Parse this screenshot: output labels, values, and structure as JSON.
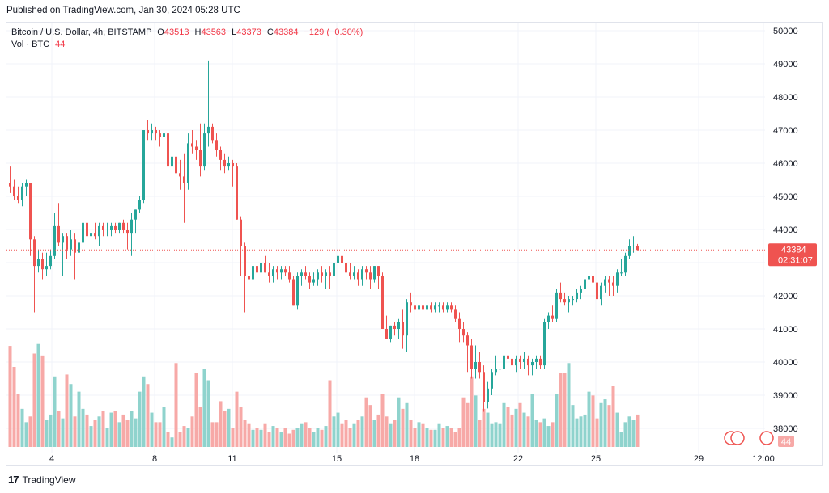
{
  "header": {
    "published_text": "Published on TradingView.com, Jan 30, 2024 05:28 UTC"
  },
  "legend": {
    "symbol": "Bitcoin / U.S. Dollar, 4h, BITSTAMP",
    "open_key": "O",
    "open_value": "43513",
    "high_key": "H",
    "high_value": "43563",
    "low_key": "L",
    "low_value": "43373",
    "close_key": "C",
    "close_value": "43384",
    "change": "−129 (−0.30%)",
    "vol_label": "Vol · BTC",
    "vol_value": "44"
  },
  "price_axis": {
    "ticks": [
      "50000",
      "49000",
      "48000",
      "47000",
      "46000",
      "45000",
      "44000",
      "43000",
      "42000",
      "41000",
      "40000",
      "39000",
      "38000"
    ],
    "last_price_label": "43384",
    "countdown_label": "02:31:07",
    "volume_badge": "44"
  },
  "time_axis": {
    "ticks": [
      "4",
      "8",
      "11",
      "15",
      "18",
      "22",
      "25",
      "29",
      "12:00"
    ]
  },
  "footer": {
    "brand": "TradingView"
  },
  "colors": {
    "up": "#26a69a",
    "down": "#ef5350",
    "vol_up": "#8fd3cd",
    "vol_down": "#f7a9a7",
    "grid": "#f0f3fa",
    "last_price_line": "#ef5350"
  },
  "chart_data": {
    "type": "candlestick",
    "title": "Bitcoin / U.S. Dollar, 4h, BITSTAMP",
    "ylim": [
      37800,
      50200
    ],
    "y_ticks": [
      50000,
      49000,
      48000,
      47000,
      46000,
      45000,
      44000,
      43000,
      42000,
      41000,
      40000,
      39000,
      38000
    ],
    "x_ticks": [
      "4",
      "8",
      "11",
      "15",
      "18",
      "22",
      "25",
      "29",
      "12:00"
    ],
    "last_close": 43384,
    "candles": [
      [
        45400,
        45900,
        45100,
        45300
      ],
      [
        45300,
        45500,
        44900,
        45000
      ],
      [
        45000,
        45300,
        44800,
        44900
      ],
      [
        44900,
        45400,
        44700,
        45300
      ],
      [
        45300,
        45500,
        45000,
        45400
      ],
      [
        45400,
        45400,
        43200,
        43700
      ],
      [
        43700,
        43800,
        41500,
        42900
      ],
      [
        42900,
        43400,
        42700,
        43100
      ],
      [
        43100,
        43300,
        42500,
        42800
      ],
      [
        42800,
        43300,
        42600,
        42900
      ],
      [
        42900,
        43400,
        42800,
        43200
      ],
      [
        43200,
        44500,
        43100,
        44100
      ],
      [
        44100,
        44800,
        43500,
        43600
      ],
      [
        43600,
        43900,
        42600,
        43800
      ],
      [
        43800,
        43900,
        43100,
        43400
      ],
      [
        43400,
        44000,
        43200,
        43700
      ],
      [
        43700,
        43900,
        42500,
        43300
      ],
      [
        43300,
        43700,
        43000,
        43600
      ],
      [
        43600,
        44300,
        43300,
        44200
      ],
      [
        44200,
        44500,
        43700,
        43800
      ],
      [
        43800,
        44100,
        43600,
        43900
      ],
      [
        43900,
        44200,
        43700,
        43800
      ],
      [
        43800,
        44200,
        43500,
        44100
      ],
      [
        44100,
        44200,
        43800,
        44000
      ],
      [
        44000,
        44200,
        43800,
        44000
      ],
      [
        44000,
        44200,
        43800,
        44100
      ],
      [
        44100,
        44200,
        43900,
        44000
      ],
      [
        44000,
        44200,
        43900,
        44200
      ],
      [
        44200,
        44300,
        43900,
        44000
      ],
      [
        44000,
        44200,
        43400,
        43900
      ],
      [
        43900,
        44500,
        43200,
        44300
      ],
      [
        44300,
        44600,
        43900,
        44600
      ],
      [
        44600,
        45000,
        44500,
        44900
      ],
      [
        44900,
        47000,
        44800,
        47000
      ],
      [
        47000,
        47300,
        46700,
        46900
      ],
      [
        46900,
        47200,
        46700,
        47000
      ],
      [
        47000,
        47100,
        46700,
        46900
      ],
      [
        46900,
        47000,
        46500,
        46800
      ],
      [
        46800,
        47000,
        46600,
        46900
      ],
      [
        46900,
        47900,
        45700,
        45900
      ],
      [
        45900,
        46300,
        44600,
        46200
      ],
      [
        46200,
        46300,
        45600,
        45700
      ],
      [
        45700,
        46100,
        45200,
        45600
      ],
      [
        45600,
        46300,
        44200,
        45400
      ],
      [
        45400,
        46900,
        45200,
        46600
      ],
      [
        46600,
        47000,
        46300,
        46500
      ],
      [
        46500,
        46700,
        46100,
        46400
      ],
      [
        46400,
        47200,
        45600,
        45900
      ],
      [
        45900,
        47200,
        45800,
        46900
      ],
      [
        46900,
        49100,
        46500,
        47100
      ],
      [
        47100,
        47200,
        46600,
        46700
      ],
      [
        46700,
        46900,
        46200,
        46400
      ],
      [
        46400,
        46500,
        45800,
        46100
      ],
      [
        46100,
        46300,
        45700,
        45900
      ],
      [
        45900,
        46200,
        45800,
        46000
      ],
      [
        46000,
        46100,
        45300,
        45900
      ],
      [
        45900,
        46000,
        44300,
        44300
      ],
      [
        44300,
        44400,
        42600,
        43500
      ],
      [
        43500,
        43600,
        41500,
        42600
      ],
      [
        42600,
        43000,
        42300,
        42500
      ],
      [
        42500,
        43100,
        42400,
        42900
      ],
      [
        42900,
        43200,
        42500,
        42700
      ],
      [
        42700,
        43100,
        42500,
        43000
      ],
      [
        43000,
        43200,
        42700,
        42700
      ],
      [
        42700,
        43000,
        42400,
        42600
      ],
      [
        42600,
        42900,
        42400,
        42800
      ],
      [
        42800,
        42900,
        42500,
        42700
      ],
      [
        42700,
        42900,
        42500,
        42800
      ],
      [
        42800,
        42900,
        42600,
        42700
      ],
      [
        42700,
        42900,
        42400,
        42500
      ],
      [
        42500,
        42600,
        41700,
        41700
      ],
      [
        41700,
        42700,
        41600,
        42600
      ],
      [
        42600,
        42800,
        42300,
        42700
      ],
      [
        42700,
        42900,
        42500,
        42600
      ],
      [
        42600,
        42700,
        42200,
        42400
      ],
      [
        42400,
        42700,
        42300,
        42500
      ],
      [
        42500,
        42800,
        42300,
        42700
      ],
      [
        42700,
        42900,
        42400,
        42600
      ],
      [
        42600,
        42800,
        42200,
        42700
      ],
      [
        42700,
        42900,
        42200,
        42600
      ],
      [
        42600,
        43300,
        42500,
        43000
      ],
      [
        43000,
        43600,
        42900,
        43200
      ],
      [
        43200,
        43300,
        42900,
        43000
      ],
      [
        43000,
        43100,
        42600,
        42700
      ],
      [
        42700,
        43000,
        42500,
        42600
      ],
      [
        42600,
        42900,
        42500,
        42700
      ],
      [
        42700,
        42800,
        42300,
        42500
      ],
      [
        42500,
        42900,
        42300,
        42800
      ],
      [
        42800,
        42900,
        42500,
        42700
      ],
      [
        42700,
        42900,
        42200,
        42500
      ],
      [
        42500,
        42900,
        42400,
        42900
      ],
      [
        42900,
        42900,
        42200,
        42600
      ],
      [
        42600,
        42700,
        41000,
        41000
      ],
      [
        41000,
        41400,
        40700,
        40700
      ],
      [
        40700,
        41100,
        40600,
        41100
      ],
      [
        41100,
        41200,
        40800,
        41000
      ],
      [
        41000,
        41300,
        40700,
        41200
      ],
      [
        41200,
        41600,
        40400,
        40800
      ],
      [
        40800,
        41900,
        40300,
        41800
      ],
      [
        41800,
        42100,
        41500,
        41700
      ],
      [
        41700,
        41800,
        41500,
        41600
      ],
      [
        41600,
        41800,
        41500,
        41700
      ],
      [
        41700,
        41800,
        41500,
        41600
      ],
      [
        41600,
        41800,
        41500,
        41700
      ],
      [
        41700,
        41800,
        41500,
        41600
      ],
      [
        41600,
        41800,
        41500,
        41700
      ],
      [
        41700,
        41800,
        41500,
        41700
      ],
      [
        41700,
        41800,
        41500,
        41600
      ],
      [
        41600,
        41800,
        41500,
        41700
      ],
      [
        41700,
        41800,
        41500,
        41600
      ],
      [
        41600,
        41700,
        41200,
        41300
      ],
      [
        41300,
        41500,
        40600,
        41000
      ],
      [
        41000,
        41200,
        40600,
        40800
      ],
      [
        40800,
        40900,
        39700,
        40500
      ],
      [
        40500,
        40700,
        39500,
        39800
      ],
      [
        39800,
        40500,
        39500,
        40000
      ],
      [
        40000,
        40300,
        39500,
        39700
      ],
      [
        39700,
        39900,
        38500,
        38800
      ],
      [
        38800,
        39400,
        38600,
        39200
      ],
      [
        39200,
        39800,
        39000,
        39700
      ],
      [
        39700,
        40200,
        39600,
        39800
      ],
      [
        39800,
        40000,
        39600,
        39800
      ],
      [
        39800,
        40400,
        39600,
        40200
      ],
      [
        40200,
        40500,
        39900,
        40100
      ],
      [
        40100,
        40300,
        39700,
        39900
      ],
      [
        39900,
        40200,
        39700,
        40100
      ],
      [
        40100,
        40200,
        39800,
        40000
      ],
      [
        40000,
        40300,
        39800,
        40100
      ],
      [
        40100,
        40200,
        39600,
        39900
      ],
      [
        39900,
        40100,
        39600,
        40000
      ],
      [
        40000,
        40200,
        39800,
        40100
      ],
      [
        40100,
        40200,
        39800,
        39900
      ],
      [
        39900,
        41300,
        39800,
        41200
      ],
      [
        41200,
        41500,
        41000,
        41400
      ],
      [
        41400,
        41700,
        41200,
        41300
      ],
      [
        41300,
        42200,
        41200,
        42100
      ],
      [
        42100,
        42400,
        41800,
        41900
      ],
      [
        41900,
        42100,
        41700,
        41800
      ],
      [
        41800,
        42000,
        41500,
        41900
      ],
      [
        41900,
        42000,
        41700,
        41900
      ],
      [
        41900,
        42200,
        41800,
        42100
      ],
      [
        42100,
        42300,
        41900,
        42200
      ],
      [
        42200,
        42700,
        42100,
        42500
      ],
      [
        42500,
        42800,
        42300,
        42600
      ],
      [
        42600,
        42700,
        42300,
        42400
      ],
      [
        42400,
        42500,
        41800,
        41900
      ],
      [
        41900,
        42400,
        41700,
        42300
      ],
      [
        42300,
        42600,
        42100,
        42500
      ],
      [
        42500,
        42600,
        42000,
        42400
      ],
      [
        42400,
        42600,
        42000,
        42300
      ],
      [
        42300,
        42800,
        42100,
        42700
      ],
      [
        42700,
        43100,
        42600,
        42700
      ],
      [
        42700,
        43300,
        42600,
        43200
      ],
      [
        43200,
        43700,
        43100,
        43500
      ],
      [
        43500,
        43800,
        43300,
        43513
      ],
      [
        43513,
        43563,
        43373,
        43384
      ]
    ],
    "volume": {
      "label": "Vol · BTC",
      "values": [
        2650,
        2100,
        1400,
        1000,
        650,
        800,
        2450,
        2700,
        2400,
        700,
        850,
        1850,
        950,
        750,
        1900,
        1650,
        800,
        1450,
        1000,
        850,
        550,
        700,
        800,
        950,
        500,
        900,
        950,
        650,
        850,
        700,
        950,
        750,
        1450,
        1850,
        1650,
        900,
        650,
        650,
        1050,
        400,
        250,
        2200,
        400,
        550,
        500,
        800,
        1950,
        1050,
        2050,
        1750,
        650,
        650,
        1200,
        950,
        1000,
        500,
        1450,
        1050,
        700,
        600,
        450,
        500,
        450,
        600,
        400,
        550,
        500,
        400,
        500,
        350,
        450,
        500,
        600,
        650,
        500,
        400,
        500,
        450,
        550,
        1750,
        800,
        900,
        600,
        700,
        500,
        600,
        700,
        800,
        1300,
        1100,
        700,
        850,
        1400,
        800,
        600,
        700,
        1300,
        1000,
        1150,
        700,
        500,
        650,
        600,
        500,
        450,
        450,
        600,
        500,
        550,
        500,
        400,
        500,
        1300,
        1150,
        1850,
        1350,
        700,
        1000,
        900,
        600,
        650,
        600,
        1150,
        1050,
        850,
        1000,
        1150,
        900,
        800,
        1400,
        700,
        650,
        750,
        550,
        650,
        1400,
        1950,
        1950,
        2200,
        1100,
        750,
        800,
        850,
        1450,
        1350,
        750,
        1150,
        1250,
        1100,
        1600,
        900,
        400,
        650,
        800,
        700,
        850,
        1450,
        1200,
        1900,
        44
      ]
    }
  }
}
